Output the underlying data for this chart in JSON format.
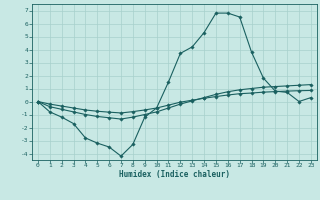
{
  "xlabel": "Humidex (Indice chaleur)",
  "ylabel": "",
  "xlim": [
    -0.5,
    23.5
  ],
  "ylim": [
    -4.5,
    7.5
  ],
  "yticks": [
    -4,
    -3,
    -2,
    -1,
    0,
    1,
    2,
    3,
    4,
    5,
    6,
    7
  ],
  "xticks": [
    0,
    1,
    2,
    3,
    4,
    5,
    6,
    7,
    8,
    9,
    10,
    11,
    12,
    13,
    14,
    15,
    16,
    17,
    18,
    19,
    20,
    21,
    22,
    23
  ],
  "background_color": "#c8e8e4",
  "grid_color": "#a8d0cc",
  "line_color": "#1a6060",
  "line1_y": [
    0.0,
    -0.8,
    -1.2,
    -1.7,
    -2.8,
    -3.2,
    -3.5,
    -4.2,
    -3.3,
    -1.2,
    -0.5,
    1.5,
    3.7,
    4.2,
    5.3,
    6.8,
    6.8,
    6.5,
    3.8,
    1.8,
    0.8,
    0.7,
    0.0,
    0.3
  ],
  "line2_y": [
    0.0,
    -0.4,
    -0.6,
    -0.8,
    -1.0,
    -1.15,
    -1.25,
    -1.35,
    -1.2,
    -1.0,
    -0.8,
    -0.5,
    -0.2,
    0.05,
    0.3,
    0.55,
    0.75,
    0.9,
    1.0,
    1.1,
    1.15,
    1.2,
    1.25,
    1.3
  ],
  "line3_y": [
    0.0,
    -0.2,
    -0.35,
    -0.5,
    -0.65,
    -0.75,
    -0.82,
    -0.88,
    -0.78,
    -0.65,
    -0.5,
    -0.28,
    -0.05,
    0.1,
    0.25,
    0.38,
    0.5,
    0.6,
    0.65,
    0.72,
    0.76,
    0.8,
    0.83,
    0.85
  ]
}
